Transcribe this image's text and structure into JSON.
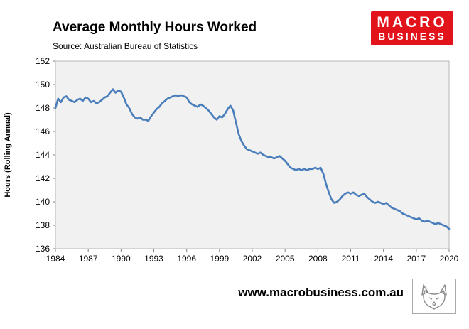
{
  "header": {
    "title": "Average Monthly Hours Worked",
    "source": "Source: Australian Bureau of Statistics"
  },
  "logo": {
    "line1": "MACRO",
    "line2": "BUSINESS",
    "bg_color": "#e2131b"
  },
  "footer": {
    "url": "www.macrobusiness.com.au",
    "logo_icon": "wolf-logo-icon"
  },
  "chart_data": {
    "type": "line",
    "title": "Average Monthly Hours Worked",
    "xlabel": "",
    "ylabel": "Hours (Rolling Annual)",
    "xlim": [
      1984,
      2020
    ],
    "ylim": [
      136,
      152
    ],
    "x_ticks": [
      1984,
      1987,
      1990,
      1993,
      1996,
      1999,
      2002,
      2005,
      2008,
      2011,
      2014,
      2017,
      2020
    ],
    "y_ticks": [
      136,
      138,
      140,
      142,
      144,
      146,
      148,
      150,
      152
    ],
    "grid": false,
    "legend": "none",
    "line_color": "#4a7ebb",
    "plot_bg": "#f1f1f1",
    "series": [
      {
        "name": "Average monthly hours worked (rolling annual)",
        "x_start": 1984,
        "x_step": 0.25,
        "values": [
          148.0,
          148.8,
          148.5,
          148.9,
          149.0,
          148.7,
          148.6,
          148.5,
          148.7,
          148.8,
          148.6,
          148.9,
          148.8,
          148.5,
          148.6,
          148.4,
          148.5,
          148.7,
          148.9,
          149.0,
          149.3,
          149.6,
          149.3,
          149.5,
          149.4,
          148.9,
          148.3,
          148.0,
          147.5,
          147.2,
          147.1,
          147.2,
          147.0,
          147.0,
          146.9,
          147.3,
          147.6,
          147.9,
          148.1,
          148.4,
          148.6,
          148.8,
          148.9,
          149.0,
          149.1,
          149.0,
          149.1,
          149.0,
          148.9,
          148.5,
          148.3,
          148.2,
          148.1,
          148.3,
          148.2,
          148.0,
          147.8,
          147.5,
          147.2,
          147.0,
          147.3,
          147.2,
          147.5,
          147.9,
          148.2,
          147.8,
          146.8,
          145.8,
          145.2,
          144.8,
          144.5,
          144.4,
          144.3,
          144.2,
          144.1,
          144.2,
          144.0,
          143.9,
          143.8,
          143.8,
          143.7,
          143.8,
          143.9,
          143.7,
          143.5,
          143.2,
          142.9,
          142.8,
          142.7,
          142.8,
          142.7,
          142.8,
          142.7,
          142.8,
          142.8,
          142.9,
          142.8,
          142.9,
          142.4,
          141.5,
          140.8,
          140.2,
          139.9,
          140.0,
          140.2,
          140.5,
          140.7,
          140.8,
          140.7,
          140.8,
          140.6,
          140.5,
          140.6,
          140.7,
          140.4,
          140.2,
          140.0,
          139.9,
          140.0,
          139.9,
          139.8,
          139.9,
          139.7,
          139.5,
          139.4,
          139.3,
          139.2,
          139.0,
          138.9,
          138.8,
          138.7,
          138.6,
          138.5,
          138.6,
          138.4,
          138.3,
          138.4,
          138.3,
          138.2,
          138.1,
          138.2,
          138.1,
          138.0,
          137.9,
          137.7
        ]
      }
    ]
  }
}
